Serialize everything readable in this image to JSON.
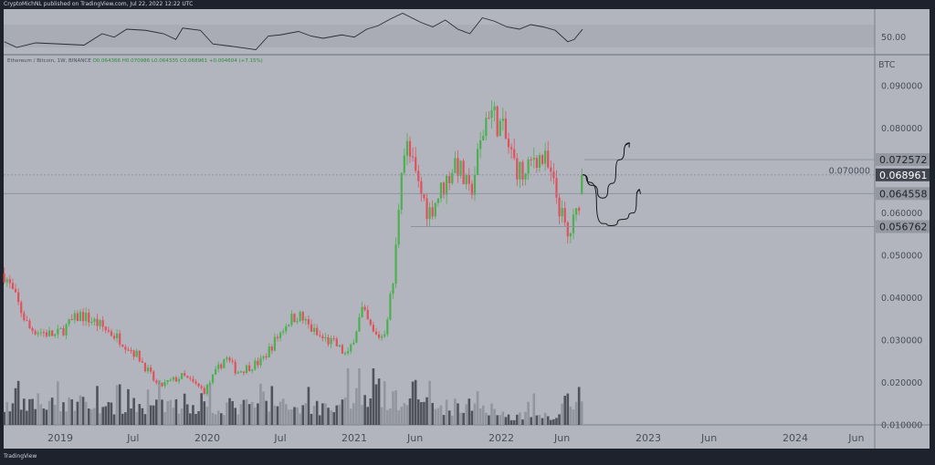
{
  "header": {
    "published": "CryptoMichNL published on TradingView.com, Jul 22, 2022 12:22 UTC"
  },
  "footer": {
    "brand": "TradingView"
  },
  "legend": {
    "symbol": "Ethereum / Bitcoin, 1W, BINANCE",
    "open": "O0.064366",
    "high": "H0.070986",
    "low": "L0.064335",
    "close": "C0.068961",
    "change": "+0.004604 (+7.15%)"
  },
  "colors": {
    "background": "#b2b5be",
    "frame": "#1e222d",
    "up": "#4caf50",
    "down": "#e0525b",
    "text": "#4a4e5a"
  },
  "chart_data": {
    "type": "candlestick",
    "title": "Ethereum / Bitcoin, 1W, BINANCE",
    "unit": "BTC",
    "ylim": [
      0.01,
      0.095
    ],
    "y_ticks": [
      "0.090000",
      "0.080000",
      "0.070000",
      "0.060000",
      "0.050000",
      "0.040000",
      "0.030000",
      "0.020000",
      "0.010000"
    ],
    "x_ticks": [
      "2019",
      "Jul",
      "2020",
      "Jul",
      "2021",
      "Jun",
      "2022",
      "Jun",
      "2023",
      "Jun",
      "2024",
      "Jun"
    ],
    "x_tick_dates": [
      "2019-01-01",
      "2019-07-01",
      "2020-01-01",
      "2020-07-01",
      "2021-01-01",
      "2021-06-01",
      "2022-01-01",
      "2022-06-01",
      "2023-01-01",
      "2023-06-01",
      "2024-01-01",
      "2024-06-01"
    ],
    "close_path": [
      [
        "2018-08-15",
        0.0457
      ],
      [
        "2018-10-15",
        0.0328
      ],
      [
        "2018-12-20",
        0.031
      ],
      [
        "2019-02-20",
        0.036
      ],
      [
        "2019-04-01",
        0.034
      ],
      [
        "2019-06-01",
        0.03
      ],
      [
        "2019-07-15",
        0.026
      ],
      [
        "2019-09-01",
        0.019
      ],
      [
        "2019-11-01",
        0.0215
      ],
      [
        "2019-12-25",
        0.018
      ],
      [
        "2020-02-15",
        0.026
      ],
      [
        "2020-03-15",
        0.0225
      ],
      [
        "2020-05-15",
        0.025
      ],
      [
        "2020-07-20",
        0.0345
      ],
      [
        "2020-08-15",
        0.036
      ],
      [
        "2020-10-01",
        0.031
      ],
      [
        "2020-11-15",
        0.029
      ],
      [
        "2020-12-15",
        0.026
      ],
      [
        "2021-01-20",
        0.037
      ],
      [
        "2021-02-20",
        0.031
      ],
      [
        "2021-03-15",
        0.031
      ],
      [
        "2021-04-10",
        0.045
      ],
      [
        "2021-04-28",
        0.072
      ],
      [
        "2021-05-10",
        0.076
      ],
      [
        "2021-06-10",
        0.066
      ],
      [
        "2021-07-05",
        0.06
      ],
      [
        "2021-08-20",
        0.068
      ],
      [
        "2021-09-10",
        0.0725
      ],
      [
        "2021-10-15",
        0.064
      ],
      [
        "2021-11-30",
        0.085
      ],
      [
        "2022-01-01",
        0.08
      ],
      [
        "2022-02-01",
        0.072
      ],
      [
        "2022-03-01",
        0.068
      ],
      [
        "2022-03-25",
        0.074
      ],
      [
        "2022-04-20",
        0.072
      ],
      [
        "2022-05-15",
        0.065
      ],
      [
        "2022-06-15",
        0.054
      ],
      [
        "2022-07-08",
        0.06
      ],
      [
        "2022-07-22",
        0.068961
      ]
    ],
    "rsi": {
      "level_label": "50.00",
      "values": [
        [
          "2018-08-15",
          45
        ],
        [
          "2018-09-15",
          40
        ],
        [
          "2018-11-01",
          44
        ],
        [
          "2019-01-01",
          43
        ],
        [
          "2019-03-01",
          42
        ],
        [
          "2019-04-15",
          52
        ],
        [
          "2019-05-15",
          49
        ],
        [
          "2019-06-15",
          56
        ],
        [
          "2019-08-01",
          55
        ],
        [
          "2019-09-15",
          52
        ],
        [
          "2019-10-15",
          47
        ],
        [
          "2019-11-01",
          57
        ],
        [
          "2019-12-15",
          55
        ],
        [
          "2020-01-15",
          43
        ],
        [
          "2020-03-01",
          41
        ],
        [
          "2020-05-01",
          38
        ],
        [
          "2020-06-01",
          50
        ],
        [
          "2020-07-01",
          51
        ],
        [
          "2020-08-15",
          54
        ],
        [
          "2020-09-15",
          50
        ],
        [
          "2020-10-15",
          48
        ],
        [
          "2020-12-01",
          51
        ],
        [
          "2021-01-01",
          49
        ],
        [
          "2021-02-01",
          56
        ],
        [
          "2021-03-01",
          59
        ],
        [
          "2021-04-01",
          65
        ],
        [
          "2021-05-01",
          70
        ],
        [
          "2021-06-15",
          62
        ],
        [
          "2021-07-15",
          58
        ],
        [
          "2021-08-15",
          64
        ],
        [
          "2021-09-15",
          56
        ],
        [
          "2021-10-15",
          52
        ],
        [
          "2021-11-15",
          66
        ],
        [
          "2021-12-15",
          63
        ],
        [
          "2022-01-15",
          58
        ],
        [
          "2022-02-15",
          56
        ],
        [
          "2022-03-15",
          60
        ],
        [
          "2022-04-15",
          58
        ],
        [
          "2022-05-15",
          55
        ],
        [
          "2022-06-15",
          45
        ],
        [
          "2022-07-01",
          47
        ],
        [
          "2022-07-22",
          56
        ]
      ]
    },
    "price_labels": [
      {
        "value": "0.072572",
        "price": 0.072572,
        "style": "light"
      },
      {
        "value": "0.068961",
        "price": 0.068961,
        "style": "current"
      },
      {
        "value": "0.064558",
        "price": 0.064558,
        "style": "light"
      },
      {
        "value": "0.056762",
        "price": 0.056762,
        "style": "light"
      }
    ],
    "projections": [
      [
        [
          "2022-07-22",
          0.069
        ],
        [
          "2022-08-15",
          0.0665
        ],
        [
          "2022-09-10",
          0.0635
        ],
        [
          "2022-10-05",
          0.067
        ],
        [
          "2022-10-20",
          0.0725
        ],
        [
          "2022-11-15",
          0.0765
        ]
      ],
      [
        [
          "2022-07-22",
          0.069
        ],
        [
          "2022-08-10",
          0.0672
        ],
        [
          "2022-09-10",
          0.0575
        ],
        [
          "2022-10-01",
          0.057
        ],
        [
          "2022-11-01",
          0.0585
        ],
        [
          "2022-11-25",
          0.06
        ],
        [
          "2022-12-10",
          0.0655
        ]
      ]
    ]
  }
}
